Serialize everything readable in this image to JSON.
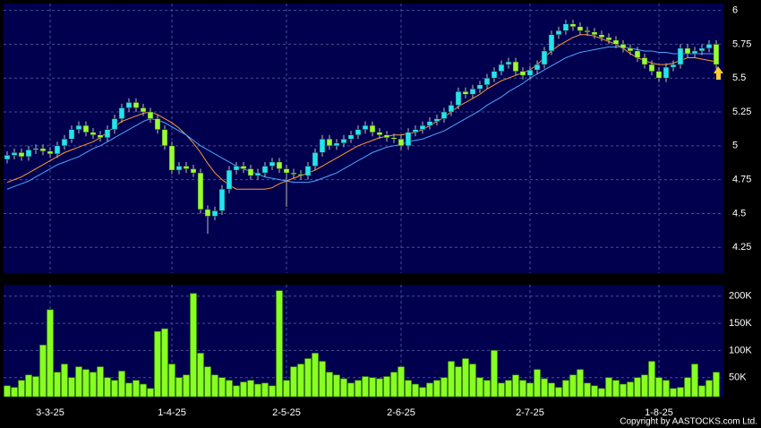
{
  "chart_data": {
    "type": "candlestick",
    "categories": [
      null,
      null,
      null,
      null,
      null,
      null,
      "3-3-25",
      null,
      null,
      null,
      null,
      null,
      null,
      null,
      null,
      null,
      null,
      null,
      null,
      null,
      null,
      null,
      null,
      "1-4-25",
      null,
      null,
      null,
      null,
      null,
      null,
      null,
      null,
      null,
      null,
      null,
      null,
      null,
      null,
      null,
      "2-5-25",
      null,
      null,
      null,
      null,
      null,
      null,
      null,
      null,
      null,
      null,
      null,
      null,
      null,
      null,
      null,
      "2-6-25",
      null,
      null,
      null,
      null,
      null,
      null,
      null,
      null,
      null,
      null,
      null,
      null,
      null,
      null,
      null,
      null,
      null,
      "2-7-25",
      null,
      null,
      null,
      null,
      null,
      null,
      null,
      null,
      null,
      null,
      null,
      null,
      null,
      null,
      null,
      null,
      null,
      "1-8-25",
      null,
      null,
      null,
      null,
      null,
      null,
      null,
      null
    ],
    "open": [
      4.9,
      4.93,
      4.95,
      4.92,
      4.97,
      4.98,
      4.96,
      4.94,
      5.0,
      5.05,
      5.12,
      5.15,
      5.1,
      5.08,
      5.06,
      5.12,
      5.2,
      5.28,
      5.32,
      5.28,
      5.25,
      5.2,
      5.12,
      5.0,
      4.82,
      4.85,
      4.83,
      4.8,
      4.53,
      4.48,
      4.52,
      4.68,
      4.82,
      4.85,
      4.83,
      4.78,
      4.8,
      4.85,
      4.88,
      4.83,
      4.8,
      4.79,
      4.78,
      4.85,
      4.95,
      5.05,
      5.0,
      5.02,
      5.05,
      5.08,
      5.12,
      5.15,
      5.1,
      5.08,
      5.06,
      5.05,
      5.0,
      5.1,
      5.12,
      5.15,
      5.18,
      5.2,
      5.25,
      5.3,
      5.4,
      5.38,
      5.42,
      5.45,
      5.5,
      5.55,
      5.6,
      5.62,
      5.55,
      5.52,
      5.56,
      5.6,
      5.7,
      5.82,
      5.85,
      5.9,
      5.88,
      5.85,
      5.84,
      5.82,
      5.8,
      5.78,
      5.75,
      5.72,
      5.7,
      5.65,
      5.6,
      5.55,
      5.5,
      5.58,
      5.6,
      5.72,
      5.68,
      5.7,
      5.72,
      5.75
    ],
    "high": [
      4.96,
      4.98,
      4.98,
      5.0,
      5.01,
      5.01,
      4.99,
      5.03,
      5.08,
      5.15,
      5.18,
      5.18,
      5.13,
      5.11,
      5.15,
      5.23,
      5.31,
      5.35,
      5.35,
      5.31,
      5.28,
      5.23,
      5.15,
      5.03,
      4.88,
      4.88,
      4.86,
      4.83,
      4.56,
      4.55,
      4.71,
      4.85,
      4.88,
      4.88,
      4.86,
      4.83,
      4.88,
      4.91,
      4.91,
      4.86,
      4.83,
      4.82,
      4.88,
      4.98,
      5.08,
      5.08,
      5.05,
      5.08,
      5.11,
      5.15,
      5.18,
      5.18,
      5.13,
      5.11,
      5.09,
      5.08,
      5.13,
      5.15,
      5.18,
      5.21,
      5.23,
      5.28,
      5.33,
      5.43,
      5.43,
      5.45,
      5.48,
      5.53,
      5.58,
      5.63,
      5.65,
      5.65,
      5.58,
      5.59,
      5.63,
      5.73,
      5.85,
      5.88,
      5.93,
      5.93,
      5.91,
      5.88,
      5.87,
      5.85,
      5.83,
      5.81,
      5.78,
      5.75,
      5.73,
      5.68,
      5.63,
      5.58,
      5.61,
      5.63,
      5.75,
      5.75,
      5.73,
      5.75,
      5.78,
      5.78
    ],
    "low": [
      4.87,
      4.9,
      4.89,
      4.89,
      4.94,
      4.93,
      4.91,
      4.91,
      4.97,
      5.02,
      5.09,
      5.07,
      5.05,
      5.03,
      5.03,
      5.09,
      5.17,
      5.25,
      5.25,
      5.22,
      5.17,
      5.09,
      4.97,
      4.79,
      4.79,
      4.8,
      4.77,
      4.5,
      4.35,
      4.45,
      4.49,
      4.65,
      4.79,
      4.8,
      4.75,
      4.75,
      4.77,
      4.82,
      4.8,
      4.55,
      4.76,
      4.75,
      4.75,
      4.82,
      4.92,
      4.97,
      4.97,
      4.99,
      5.02,
      5.05,
      5.09,
      5.07,
      5.05,
      5.03,
      5.02,
      4.97,
      4.97,
      5.07,
      5.09,
      5.12,
      5.15,
      5.17,
      5.22,
      5.27,
      5.35,
      5.35,
      5.39,
      5.42,
      5.47,
      5.52,
      5.57,
      5.52,
      5.49,
      5.49,
      5.53,
      5.57,
      5.67,
      5.79,
      5.82,
      5.85,
      5.82,
      5.81,
      5.79,
      5.77,
      5.75,
      5.72,
      5.69,
      5.67,
      5.62,
      5.57,
      5.52,
      5.47,
      5.47,
      5.55,
      5.57,
      5.65,
      5.65,
      5.67,
      5.69,
      5.57
    ],
    "close": [
      4.93,
      4.95,
      4.92,
      4.97,
      4.98,
      4.96,
      4.94,
      5.0,
      5.05,
      5.12,
      5.15,
      5.1,
      5.08,
      5.06,
      5.12,
      5.2,
      5.28,
      5.32,
      5.28,
      5.25,
      5.2,
      5.12,
      5.0,
      4.82,
      4.85,
      4.83,
      4.8,
      4.53,
      4.48,
      4.52,
      4.68,
      4.82,
      4.85,
      4.83,
      4.78,
      4.8,
      4.85,
      4.88,
      4.83,
      4.8,
      4.79,
      4.78,
      4.85,
      4.95,
      5.05,
      5.0,
      5.02,
      5.05,
      5.08,
      5.12,
      5.15,
      5.1,
      5.08,
      5.06,
      5.05,
      5.0,
      5.1,
      5.12,
      5.15,
      5.18,
      5.2,
      5.25,
      5.3,
      5.4,
      5.38,
      5.42,
      5.45,
      5.5,
      5.55,
      5.6,
      5.62,
      5.55,
      5.52,
      5.56,
      5.6,
      5.7,
      5.82,
      5.85,
      5.9,
      5.88,
      5.85,
      5.84,
      5.82,
      5.8,
      5.78,
      5.75,
      5.72,
      5.7,
      5.65,
      5.6,
      5.55,
      5.5,
      5.58,
      5.6,
      5.72,
      5.68,
      5.7,
      5.72,
      5.75,
      5.6
    ],
    "up_color": "#22e4f0",
    "down_color": "#99ff33",
    "lines": [
      {
        "color": "#ff9933",
        "values": [
          4.73,
          4.75,
          4.77,
          4.8,
          4.83,
          4.86,
          4.89,
          4.92,
          4.95,
          4.97,
          4.99,
          5.01,
          5.03,
          5.06,
          5.1,
          5.14,
          5.18,
          5.2,
          5.22,
          5.24,
          5.25,
          5.23,
          5.2,
          5.17,
          5.13,
          5.08,
          5.02,
          4.95,
          4.87,
          4.8,
          4.75,
          4.71,
          4.68,
          4.68,
          4.68,
          4.68,
          4.68,
          4.69,
          4.72,
          4.74,
          4.76,
          4.78,
          4.8,
          4.82,
          4.85,
          4.88,
          4.91,
          4.94,
          4.97,
          5.0,
          5.02,
          5.04,
          5.06,
          5.07,
          5.08,
          5.08,
          5.09,
          5.1,
          5.12,
          5.15,
          5.18,
          5.21,
          5.25,
          5.29,
          5.32,
          5.35,
          5.38,
          5.42,
          5.45,
          5.48,
          5.5,
          5.52,
          5.54,
          5.56,
          5.6,
          5.65,
          5.7,
          5.74,
          5.77,
          5.8,
          5.82,
          5.82,
          5.81,
          5.79,
          5.77,
          5.75,
          5.72,
          5.68,
          5.65,
          5.63,
          5.61,
          5.6,
          5.6,
          5.61,
          5.63,
          5.65,
          5.65,
          5.64,
          5.63,
          5.62
        ]
      },
      {
        "color": "#4da6ff",
        "values": [
          4.68,
          4.7,
          4.72,
          4.74,
          4.77,
          4.8,
          4.83,
          4.86,
          4.88,
          4.9,
          4.92,
          4.95,
          4.98,
          5.0,
          5.03,
          5.06,
          5.09,
          5.12,
          5.15,
          5.18,
          5.2,
          5.19,
          5.17,
          5.14,
          5.11,
          5.08,
          5.04,
          5.0,
          4.97,
          4.94,
          4.91,
          4.88,
          4.85,
          4.83,
          4.81,
          4.79,
          4.77,
          4.76,
          4.75,
          4.74,
          4.73,
          4.73,
          4.73,
          4.74,
          4.76,
          4.78,
          4.8,
          4.83,
          4.86,
          4.89,
          4.92,
          4.95,
          4.97,
          4.99,
          5.0,
          5.01,
          5.03,
          5.04,
          5.05,
          5.07,
          5.09,
          5.11,
          5.14,
          5.17,
          5.2,
          5.23,
          5.26,
          5.3,
          5.33,
          5.36,
          5.4,
          5.43,
          5.46,
          5.5,
          5.53,
          5.56,
          5.59,
          5.62,
          5.65,
          5.67,
          5.69,
          5.7,
          5.71,
          5.72,
          5.73,
          5.73,
          5.73,
          5.72,
          5.71,
          5.7,
          5.7,
          5.69,
          5.69,
          5.68,
          5.68,
          5.68,
          5.68,
          5.68,
          5.68,
          5.68
        ]
      }
    ],
    "ylim": [
      4.06,
      6.05
    ],
    "yticks": [
      4.25,
      4.5,
      4.75,
      5,
      5.25,
      5.5,
      5.75,
      6
    ],
    "grid": true,
    "volume": {
      "color": "#88ff22",
      "values": [
        35000,
        32000,
        45000,
        55000,
        52000,
        110000,
        175000,
        60000,
        75000,
        50000,
        70000,
        65000,
        60000,
        70000,
        50000,
        45000,
        62000,
        40000,
        45000,
        38000,
        30000,
        135000,
        140000,
        75000,
        50000,
        55000,
        205000,
        95000,
        70000,
        55000,
        50000,
        45000,
        35000,
        42000,
        45000,
        38000,
        40000,
        35000,
        210000,
        45000,
        70000,
        75000,
        85000,
        95000,
        80000,
        60000,
        55000,
        48000,
        40000,
        45000,
        52000,
        50000,
        48000,
        52000,
        60000,
        70000,
        45000,
        38000,
        32000,
        40000,
        45000,
        50000,
        80000,
        70000,
        85000,
        75000,
        50000,
        45000,
        100000,
        40000,
        45000,
        55000,
        45000,
        40000,
        65000,
        48000,
        40000,
        32000,
        45000,
        55000,
        65000,
        40000,
        35000,
        30000,
        50000,
        45000,
        38000,
        42000,
        50000,
        55000,
        80000,
        50000,
        45000,
        30000,
        32000,
        50000,
        75000,
        35000,
        45000,
        60000
      ],
      "ylim": [
        15000,
        221000
      ],
      "yticks": [
        {
          "value": 50000,
          "label": "50K"
        },
        {
          "value": 100000,
          "label": "100K"
        },
        {
          "value": 150000,
          "label": "150K"
        },
        {
          "value": 200000,
          "label": "200K"
        }
      ]
    },
    "copyright": "Copyright by AASTOCKS.com Ltd."
  }
}
